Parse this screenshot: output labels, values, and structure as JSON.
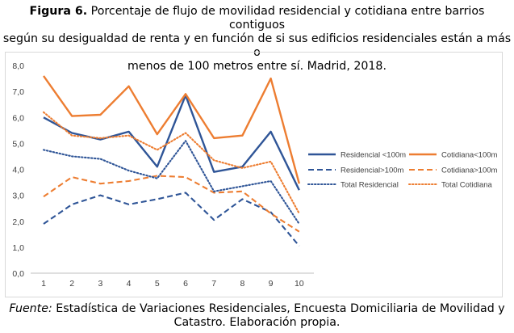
{
  "caption": {
    "label": "Figura 6.",
    "line1": "Porcentaje de flujo de movilidad residencial y cotidiana entre barrios contiguos",
    "line2": "según su desigualdad de renta y en función de si sus edificios residenciales están a más o",
    "line3": "menos de 100 metros entre sí. Madrid, 2018."
  },
  "source": {
    "label": "Fuente:",
    "line1": "Estadística de Variaciones Residenciales, Encuesta Domiciliaria de Movilidad y",
    "line2": "Catastro. Elaboración propia."
  },
  "chart_data": {
    "type": "line",
    "title": "",
    "xlabel": "",
    "ylabel": "",
    "x": [
      1,
      2,
      3,
      4,
      5,
      6,
      7,
      8,
      9,
      10
    ],
    "xticks": [
      "1",
      "2",
      "3",
      "4",
      "5",
      "6",
      "7",
      "8",
      "9",
      "10"
    ],
    "ylim": [
      0,
      8
    ],
    "yticks": [
      "0,0",
      "1,0",
      "2,0",
      "3,0",
      "4,0",
      "5,0",
      "6,0",
      "7,0",
      "8,0"
    ],
    "grid": false,
    "legend": "right",
    "series": [
      {
        "name": "Residencial <100m",
        "color": "#2f5597",
        "style": "solid",
        "values": [
          6.0,
          5.4,
          5.15,
          5.45,
          4.1,
          6.85,
          3.9,
          4.1,
          5.45,
          3.2
        ]
      },
      {
        "name": "Cotidiana<100m",
        "color": "#ed7d31",
        "style": "solid",
        "values": [
          7.6,
          6.05,
          6.1,
          7.2,
          5.35,
          6.9,
          5.2,
          5.3,
          7.5,
          3.45
        ]
      },
      {
        "name": "Residencial>100m",
        "color": "#2f5597",
        "style": "dashed",
        "values": [
          1.9,
          2.65,
          3.0,
          2.65,
          2.85,
          3.1,
          2.05,
          2.85,
          2.35,
          1.05
        ]
      },
      {
        "name": "Cotidiana>100m",
        "color": "#ed7d31",
        "style": "dashed",
        "values": [
          2.95,
          3.7,
          3.45,
          3.55,
          3.75,
          3.7,
          3.1,
          3.15,
          2.3,
          1.6
        ]
      },
      {
        "name": "Total Residencial",
        "color": "#2f5597",
        "style": "dotted",
        "values": [
          4.75,
          4.5,
          4.4,
          3.95,
          3.65,
          5.1,
          3.15,
          3.35,
          3.55,
          1.9
        ]
      },
      {
        "name": "Total  Cotidiana",
        "color": "#ed7d31",
        "style": "dotted",
        "values": [
          6.2,
          5.3,
          5.2,
          5.3,
          4.75,
          5.4,
          4.35,
          4.05,
          4.3,
          2.3
        ]
      }
    ]
  }
}
